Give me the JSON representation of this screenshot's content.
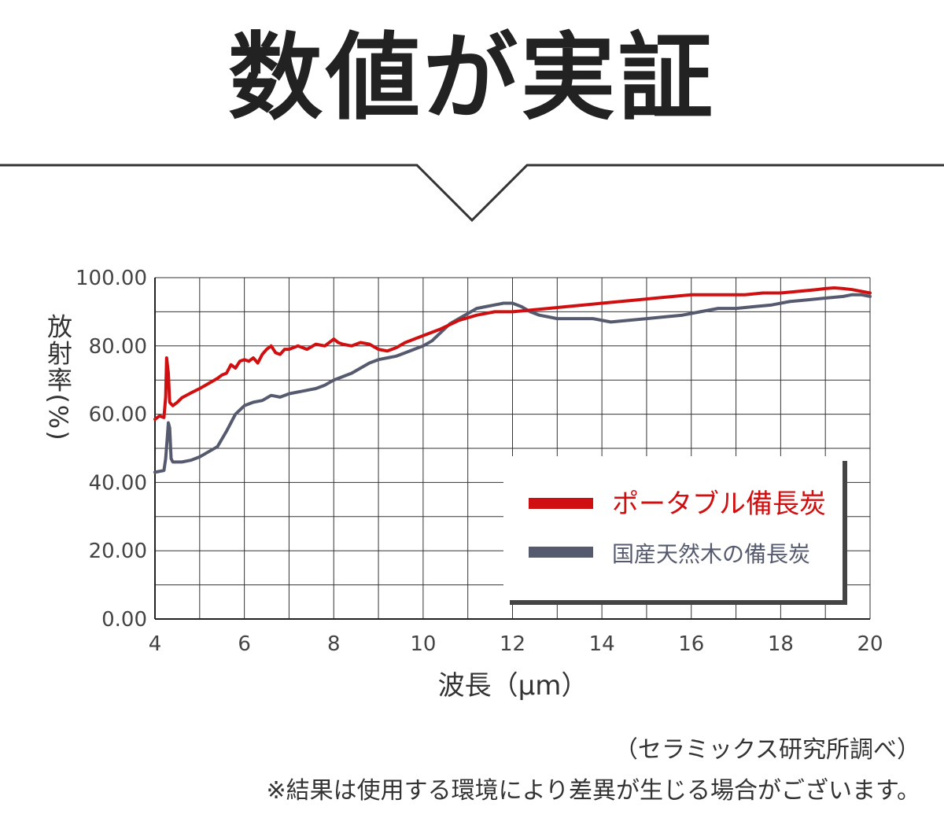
{
  "header": {
    "title": "数値が実証"
  },
  "chart_data": {
    "type": "line",
    "xlabel": "波長（μm）",
    "ylabel": "放射率(%)",
    "xlim": [
      4,
      20
    ],
    "ylim": [
      0,
      100
    ],
    "x_ticks": [
      "4",
      "6",
      "8",
      "10",
      "12",
      "14",
      "16",
      "18",
      "20"
    ],
    "y_ticks": [
      "0.00",
      "20.00",
      "40.00",
      "60.00",
      "80.00",
      "100.00"
    ],
    "grid": true,
    "legend_position": "bottom-right",
    "series": [
      {
        "name": "ポータブル備長炭",
        "color": "#d01010",
        "x": [
          4.0,
          4.1,
          4.2,
          4.24,
          4.26,
          4.3,
          4.33,
          4.36,
          4.4,
          4.5,
          4.6,
          4.8,
          5.0,
          5.2,
          5.4,
          5.5,
          5.6,
          5.7,
          5.8,
          5.9,
          6.0,
          6.1,
          6.2,
          6.3,
          6.4,
          6.5,
          6.6,
          6.7,
          6.8,
          6.9,
          7.0,
          7.2,
          7.4,
          7.6,
          7.8,
          8.0,
          8.1,
          8.2,
          8.4,
          8.6,
          8.8,
          9.0,
          9.2,
          9.4,
          9.6,
          9.8,
          10.0,
          10.4,
          10.8,
          11.2,
          11.6,
          12.0,
          12.4,
          12.8,
          13.2,
          13.6,
          14.0,
          14.4,
          14.8,
          15.2,
          15.6,
          16.0,
          16.4,
          16.8,
          17.2,
          17.6,
          18.0,
          18.4,
          18.8,
          19.0,
          19.2,
          19.4,
          19.6,
          19.8,
          20.0
        ],
        "values": [
          58.5,
          59.5,
          59.0,
          65.0,
          76.5,
          72.0,
          63.5,
          63.0,
          62.5,
          63.5,
          64.8,
          66.2,
          67.5,
          69.0,
          70.5,
          71.5,
          72.0,
          74.5,
          73.5,
          75.5,
          76.0,
          75.5,
          76.5,
          75.0,
          77.5,
          79.0,
          80.0,
          78.0,
          77.5,
          79.0,
          79.0,
          80.0,
          79.0,
          80.5,
          80.0,
          82.0,
          81.0,
          80.5,
          80.0,
          81.0,
          80.5,
          79.0,
          78.5,
          79.5,
          81.0,
          82.0,
          83.0,
          85.0,
          87.5,
          89.0,
          90.0,
          90.0,
          90.5,
          91.0,
          91.5,
          92.0,
          92.5,
          93.0,
          93.5,
          94.0,
          94.5,
          95.0,
          95.0,
          95.0,
          95.0,
          95.5,
          95.5,
          96.0,
          96.5,
          96.8,
          97.0,
          96.8,
          96.5,
          96.0,
          95.5
        ]
      },
      {
        "name": "国産天然木の備長炭",
        "color": "#555a6e",
        "x": [
          4.0,
          4.2,
          4.24,
          4.27,
          4.3,
          4.33,
          4.36,
          4.4,
          4.6,
          4.8,
          5.0,
          5.2,
          5.4,
          5.6,
          5.8,
          6.0,
          6.2,
          6.4,
          6.6,
          6.8,
          7.0,
          7.2,
          7.4,
          7.6,
          7.8,
          8.0,
          8.2,
          8.4,
          8.6,
          8.8,
          9.0,
          9.2,
          9.4,
          9.6,
          9.8,
          10.0,
          10.2,
          10.4,
          10.6,
          10.8,
          11.0,
          11.2,
          11.4,
          11.6,
          11.8,
          12.0,
          12.2,
          12.4,
          12.6,
          12.8,
          13.0,
          13.4,
          13.8,
          14.2,
          14.6,
          15.0,
          15.4,
          15.8,
          16.2,
          16.6,
          17.0,
          17.4,
          17.8,
          18.2,
          18.6,
          19.0,
          19.4,
          19.6,
          19.8,
          20.0
        ],
        "values": [
          43.0,
          43.5,
          47.0,
          52.0,
          57.5,
          56.0,
          47.0,
          46.0,
          46.0,
          46.5,
          47.5,
          49.0,
          50.5,
          55.0,
          60.0,
          62.5,
          63.5,
          64.0,
          65.5,
          65.0,
          66.0,
          66.5,
          67.0,
          67.5,
          68.5,
          70.0,
          71.0,
          72.0,
          73.5,
          75.0,
          76.0,
          76.5,
          77.0,
          78.0,
          79.0,
          80.0,
          81.5,
          84.0,
          86.5,
          88.0,
          89.5,
          91.0,
          91.5,
          92.0,
          92.5,
          92.5,
          91.5,
          90.0,
          89.0,
          88.5,
          88.0,
          88.0,
          88.0,
          87.0,
          87.5,
          88.0,
          88.5,
          89.0,
          90.0,
          91.0,
          91.0,
          91.5,
          92.0,
          93.0,
          93.5,
          94.0,
          94.5,
          95.0,
          95.0,
          94.5
        ]
      }
    ]
  },
  "footer": {
    "source": "（セラミックス研究所調べ）",
    "note": "※結果は使用する環境により差異が生じる場合がございます。"
  }
}
